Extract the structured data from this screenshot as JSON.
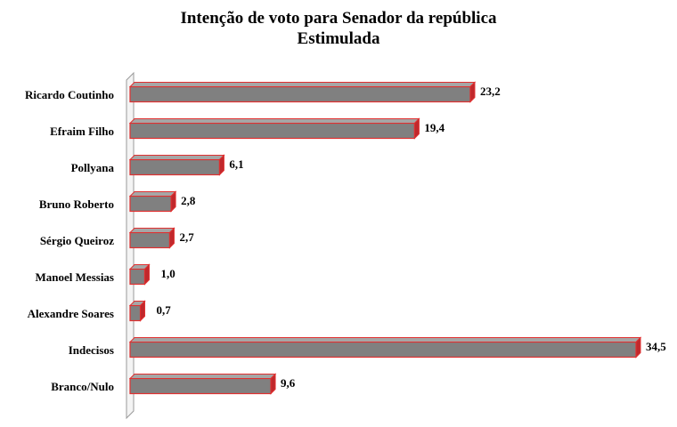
{
  "chart_data": {
    "type": "bar",
    "orientation": "horizontal",
    "title": "Intenção de voto para Senador da república",
    "subtitle": "Estimulada",
    "categories": [
      "Ricardo Coutinho",
      "Efraim Filho",
      "Pollyana",
      "Bruno Roberto",
      "Sérgio Queiroz",
      "Manoel Messias",
      "Alexandre Soares",
      "Indecisos",
      "Branco/Nulo"
    ],
    "values": [
      23.2,
      19.4,
      6.1,
      2.8,
      2.7,
      1.0,
      0.7,
      34.5,
      9.6
    ],
    "value_labels": [
      "23,2",
      "19,4",
      "6,1",
      "2,8",
      "2,7",
      "1,0",
      "0,7",
      "34,5",
      "9,6"
    ],
    "xlim": [
      0,
      34.5
    ],
    "grid": false,
    "legend": "none",
    "colors": {
      "bar_fill": "#808080",
      "bar_top": "#a6a6a6",
      "bar_border": "#e03030",
      "bar_side": "#c0282c",
      "axis": "#9a9a9a"
    }
  }
}
